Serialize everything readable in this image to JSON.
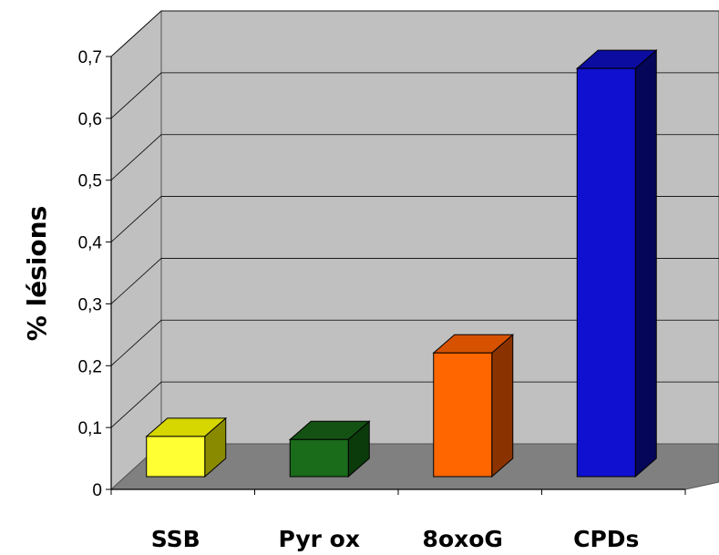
{
  "chart_data": {
    "type": "bar",
    "title": "",
    "xlabel": "",
    "ylabel": "% lésions",
    "categories": [
      "SSB",
      "Pyr ox",
      "8oxoG",
      "CPDs"
    ],
    "values": [
      0.065,
      0.06,
      0.2,
      0.66
    ],
    "colors": [
      "#ffff33",
      "#1a6b1a",
      "#ff6600",
      "#1010d0"
    ],
    "side_colors": [
      "#8a8a00",
      "#0b3a0b",
      "#8a3300",
      "#05055a"
    ],
    "top_colors": [
      "#d6d600",
      "#145214",
      "#d65200",
      "#0c0ca0"
    ],
    "yticks": [
      "0",
      "0,1",
      "0,2",
      "0,3",
      "0,4",
      "0,5",
      "0,6",
      "0,7"
    ],
    "ylim": [
      0,
      0.7
    ],
    "grid": true,
    "style": "3d-column",
    "wall_color": "#c0c0c0",
    "floor_color": "#808080"
  }
}
